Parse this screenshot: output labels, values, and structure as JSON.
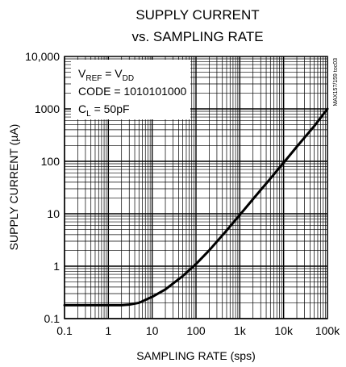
{
  "chart_data": {
    "type": "line",
    "title_line1": "SUPPLY CURRENT",
    "title_line2": "vs. SAMPLING RATE",
    "xlabel": "SAMPLING RATE (sps)",
    "ylabel": "SUPPLY CURRENT (µA)",
    "x_scale": "log",
    "y_scale": "log",
    "xlim": [
      0.1,
      100000
    ],
    "ylim": [
      0.1,
      10000
    ],
    "x_ticks": [
      0.1,
      1,
      10,
      100,
      1000,
      10000,
      100000
    ],
    "x_tick_labels": [
      "0.1",
      "1",
      "10",
      "100",
      "1k",
      "10k",
      "100k"
    ],
    "y_ticks": [
      0.1,
      1,
      10,
      100,
      1000,
      10000
    ],
    "y_tick_labels": [
      "0.1",
      "1",
      "10",
      "100",
      "1000",
      "10,000"
    ],
    "grid": true,
    "conditions": {
      "vref_main": "V",
      "vref_sub": "REF",
      "vref_eq": " = V",
      "vdd_sub": "DD",
      "code": "CODE = 1010101000",
      "cl_main": "C",
      "cl_sub": "L",
      "cl_value": " = 50pF"
    },
    "side_label": "MAX157/159 toc03",
    "series": [
      {
        "x": [
          0.1,
          0.3,
          1,
          2,
          3,
          5,
          10,
          20,
          50,
          100,
          200,
          500,
          1000,
          2000,
          5000,
          10000,
          20000,
          50000,
          100000
        ],
        "y": [
          0.18,
          0.18,
          0.18,
          0.18,
          0.185,
          0.2,
          0.26,
          0.36,
          0.65,
          1.1,
          2.0,
          4.8,
          9.5,
          19,
          47,
          94,
          190,
          470,
          1000
        ]
      }
    ]
  }
}
